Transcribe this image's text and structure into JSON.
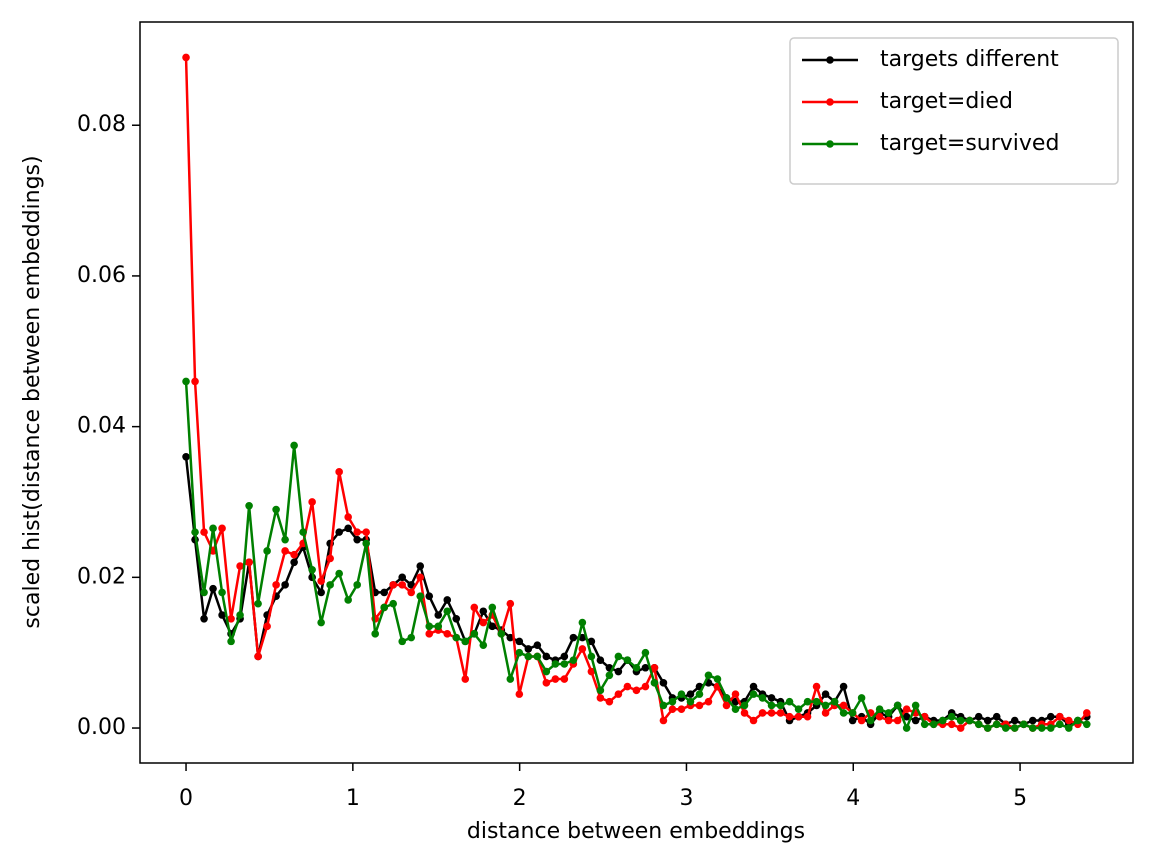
{
  "chart_data": {
    "type": "line",
    "xlabel": "distance between embeddings",
    "ylabel": "scaled hist(distance between embeddings)",
    "xlim": [
      -0.276,
      5.677
    ],
    "ylim": [
      -0.00464,
      0.0937
    ],
    "xticks": [
      0,
      1,
      2,
      3,
      4,
      5
    ],
    "yticks": [
      {
        "value": 0,
        "label": "0.00"
      },
      {
        "value": 0.02,
        "label": "0.02"
      },
      {
        "value": 0.04,
        "label": "0.04"
      },
      {
        "value": 0.06,
        "label": "0.06"
      },
      {
        "value": 0.08,
        "label": "0.08"
      }
    ],
    "legend": "upper right",
    "x": [
      0,
      0.054,
      0.108,
      0.162,
      0.216,
      0.27,
      0.324,
      0.378,
      0.432,
      0.486,
      0.54,
      0.594,
      0.648,
      0.702,
      0.756,
      0.81,
      0.864,
      0.918,
      0.972,
      1.026,
      1.08,
      1.134,
      1.188,
      1.242,
      1.296,
      1.35,
      1.404,
      1.458,
      1.512,
      1.566,
      1.62,
      1.674,
      1.728,
      1.782,
      1.836,
      1.89,
      1.944,
      1.998,
      2.052,
      2.106,
      2.16,
      2.214,
      2.268,
      2.322,
      2.376,
      2.43,
      2.484,
      2.538,
      2.592,
      2.646,
      2.7,
      2.754,
      2.808,
      2.862,
      2.916,
      2.97,
      3.024,
      3.078,
      3.132,
      3.186,
      3.24,
      3.294,
      3.348,
      3.402,
      3.456,
      3.51,
      3.564,
      3.618,
      3.672,
      3.726,
      3.78,
      3.834,
      3.888,
      3.942,
      3.996,
      4.05,
      4.104,
      4.158,
      4.212,
      4.266,
      4.32,
      4.374,
      4.428,
      4.482,
      4.536,
      4.59,
      4.644,
      4.698,
      4.752,
      4.806,
      4.86,
      4.914,
      4.968,
      5.022,
      5.076,
      5.13,
      5.184,
      5.238,
      5.292,
      5.346,
      5.4
    ],
    "series": [
      {
        "name": "targets different",
        "color": "#000000",
        "values": [
          0.036,
          0.025,
          0.0145,
          0.0185,
          0.015,
          0.0125,
          0.0145,
          0.022,
          0.0095,
          0.015,
          0.0175,
          0.019,
          0.022,
          0.024,
          0.02,
          0.018,
          0.0245,
          0.026,
          0.0265,
          0.025,
          0.025,
          0.018,
          0.018,
          0.019,
          0.02,
          0.019,
          0.0215,
          0.0175,
          0.015,
          0.017,
          0.0145,
          0.0115,
          0.0125,
          0.0155,
          0.0135,
          0.013,
          0.012,
          0.0115,
          0.0105,
          0.011,
          0.0095,
          0.009,
          0.0095,
          0.012,
          0.012,
          0.0115,
          0.009,
          0.008,
          0.0075,
          0.009,
          0.0075,
          0.008,
          0.008,
          0.006,
          0.004,
          0.004,
          0.0045,
          0.0055,
          0.006,
          0.0055,
          0.004,
          0.0035,
          0.0035,
          0.0055,
          0.0045,
          0.004,
          0.0035,
          0.001,
          0.0015,
          0.002,
          0.003,
          0.0045,
          0.0035,
          0.0055,
          0.001,
          0.0015,
          0.0005,
          0.002,
          0.0015,
          0.003,
          0.0015,
          0.001,
          0.0015,
          0.001,
          0.001,
          0.002,
          0.0015,
          0.001,
          0.0015,
          0.001,
          0.0015,
          0.0005,
          0.001,
          0.0005,
          0.001,
          0.001,
          0.0015,
          0.0015,
          0.0005,
          0.001,
          0.0015
        ]
      },
      {
        "name": "target=died",
        "color": "#ff0000",
        "values": [
          0.089,
          0.046,
          0.026,
          0.0235,
          0.0265,
          0.0145,
          0.0215,
          0.022,
          0.0095,
          0.0135,
          0.019,
          0.0235,
          0.023,
          0.0245,
          0.03,
          0.0195,
          0.0225,
          0.034,
          0.028,
          0.026,
          0.026,
          0.0145,
          0.016,
          0.019,
          0.019,
          0.018,
          0.02,
          0.0125,
          0.013,
          0.0125,
          0.012,
          0.0065,
          0.016,
          0.014,
          0.015,
          0.0125,
          0.0165,
          0.0045,
          0.0095,
          0.0095,
          0.006,
          0.0065,
          0.0065,
          0.0085,
          0.0105,
          0.0075,
          0.004,
          0.0035,
          0.0045,
          0.0055,
          0.005,
          0.0055,
          0.008,
          0.001,
          0.0025,
          0.0025,
          0.003,
          0.003,
          0.0035,
          0.0055,
          0.003,
          0.0045,
          0.002,
          0.001,
          0.002,
          0.002,
          0.002,
          0.0015,
          0.0015,
          0.0015,
          0.0055,
          0.002,
          0.003,
          0.003,
          0.002,
          0.001,
          0.002,
          0.0015,
          0.001,
          0.001,
          0.0025,
          0.002,
          0.0015,
          0.0005,
          0.0005,
          0.0005,
          0,
          0.001,
          0.0005,
          0,
          0.0005,
          0.0005,
          0,
          0.0005,
          0,
          0.0005,
          0.0005,
          0.0015,
          0.001,
          0.0005,
          0.002
        ]
      },
      {
        "name": "target=survived",
        "color": "#008000",
        "values": [
          0.046,
          0.026,
          0.018,
          0.0265,
          0.018,
          0.0115,
          0.015,
          0.0295,
          0.0165,
          0.0235,
          0.029,
          0.025,
          0.0375,
          0.026,
          0.021,
          0.014,
          0.019,
          0.0205,
          0.017,
          0.019,
          0.0245,
          0.0125,
          0.016,
          0.0165,
          0.0115,
          0.012,
          0.0175,
          0.0135,
          0.0135,
          0.0155,
          0.012,
          0.0115,
          0.0125,
          0.011,
          0.016,
          0.0125,
          0.0065,
          0.01,
          0.0095,
          0.0095,
          0.0075,
          0.0085,
          0.0085,
          0.009,
          0.014,
          0.0095,
          0.005,
          0.007,
          0.0095,
          0.009,
          0.008,
          0.01,
          0.006,
          0.003,
          0.0035,
          0.0045,
          0.0035,
          0.0045,
          0.007,
          0.0065,
          0.004,
          0.0025,
          0.003,
          0.0045,
          0.004,
          0.003,
          0.003,
          0.0035,
          0.0025,
          0.0035,
          0.0035,
          0.003,
          0.0035,
          0.002,
          0.002,
          0.004,
          0.001,
          0.0025,
          0.002,
          0.003,
          0,
          0.003,
          0.0005,
          0.0005,
          0.001,
          0.0015,
          0.001,
          0.001,
          0.0005,
          0,
          0.0005,
          0,
          0,
          0.0005,
          0,
          0,
          0,
          0.0005,
          0,
          0.001,
          0.0005
        ]
      }
    ]
  }
}
